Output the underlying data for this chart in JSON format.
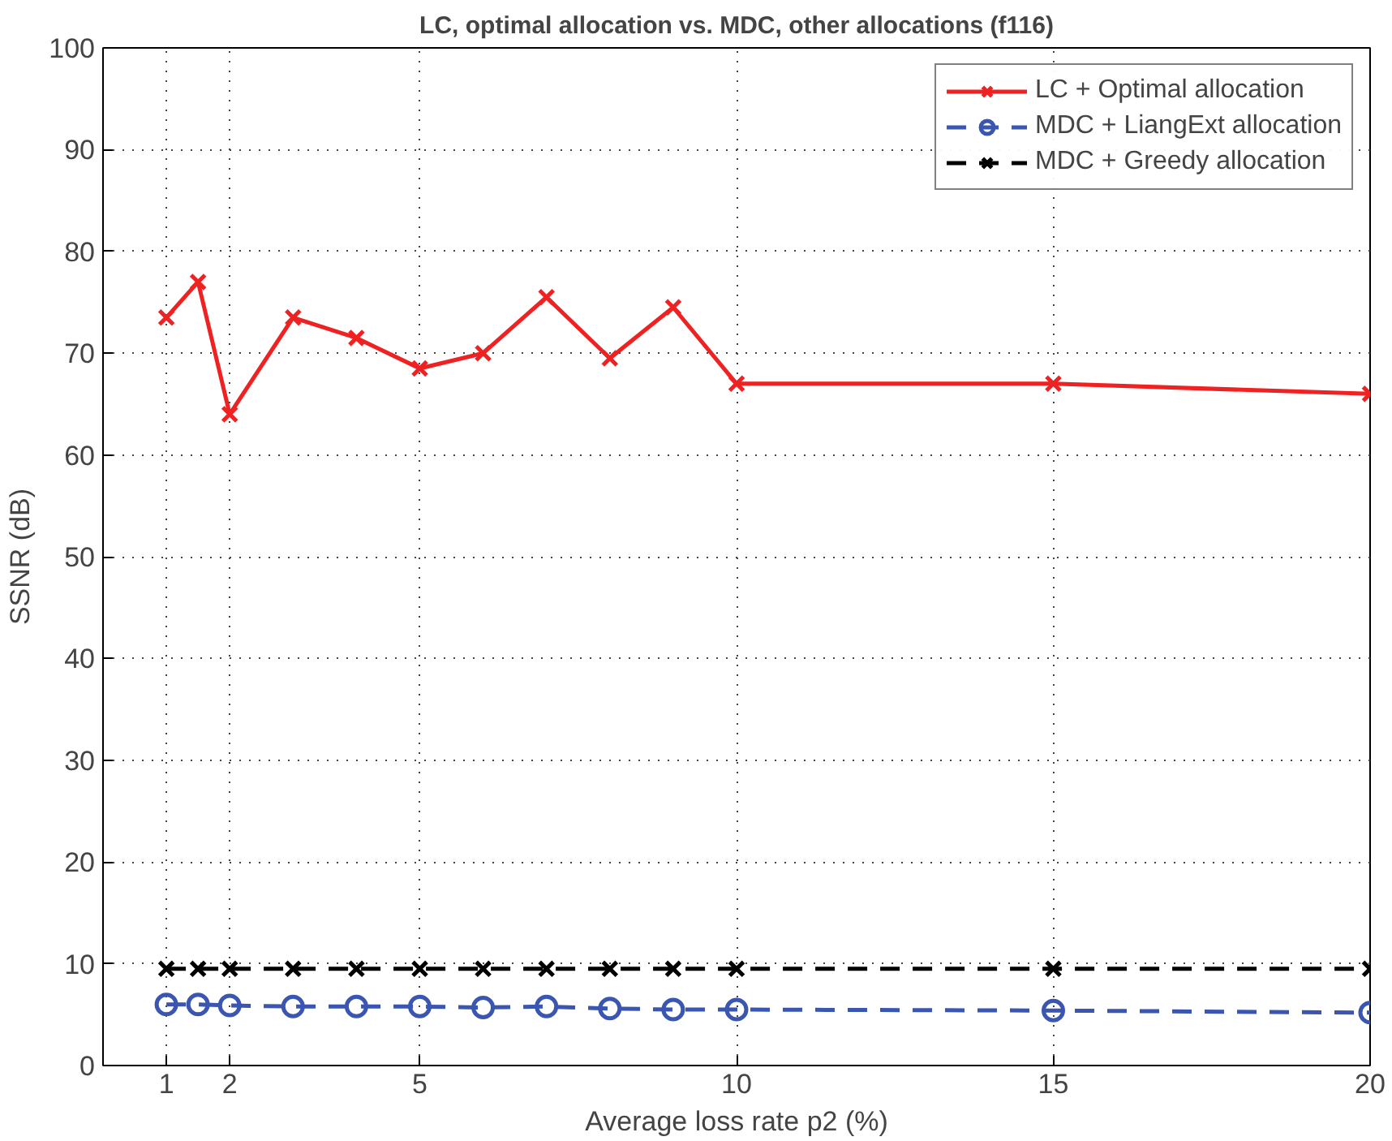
{
  "chart_data": {
    "type": "line",
    "title": "LC, optimal allocation vs. MDC, other allocations (f116)",
    "xlabel": "Average loss rate p2 (%)",
    "ylabel": "SSNR (dB)",
    "x": [
      1,
      1.5,
      2,
      3,
      4,
      5,
      6,
      7,
      8,
      9,
      10,
      15,
      20
    ],
    "xlim": [
      0,
      20
    ],
    "xticks": [
      1,
      2,
      5,
      10,
      15,
      20
    ],
    "ylim": [
      0,
      100
    ],
    "yticks": [
      0,
      10,
      20,
      30,
      40,
      50,
      60,
      70,
      80,
      90,
      100
    ],
    "grid": true,
    "legend": "top right",
    "series": [
      {
        "name": "LC + Optimal allocation",
        "color": "#ee2222",
        "marker": "cross",
        "line_style": "solid",
        "values": [
          73.5,
          77,
          64,
          73.5,
          71.5,
          68.5,
          70,
          75.5,
          69.5,
          74.5,
          67,
          67,
          66
        ]
      },
      {
        "name": "MDC + LiangExt allocation",
        "color": "#3a56b0",
        "marker": "circle",
        "line_style": "dashed",
        "values": [
          6,
          6,
          5.9,
          5.8,
          5.8,
          5.8,
          5.7,
          5.8,
          5.6,
          5.5,
          5.5,
          5.4,
          5.2
        ]
      },
      {
        "name": "MDC + Greedy allocation",
        "color": "#000000",
        "marker": "cross",
        "line_style": "dashed",
        "values": [
          9.5,
          9.5,
          9.5,
          9.5,
          9.5,
          9.5,
          9.5,
          9.5,
          9.5,
          9.5,
          9.5,
          9.5,
          9.5
        ]
      }
    ]
  }
}
